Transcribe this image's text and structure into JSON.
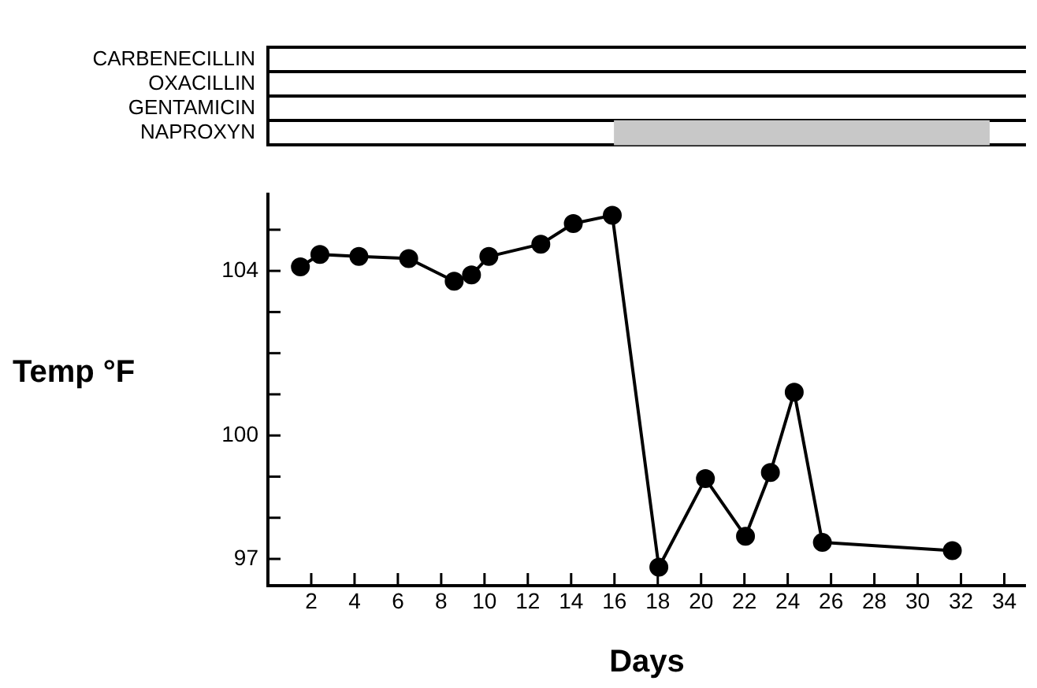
{
  "chart_data": [
    {
      "type": "bar",
      "orientation": "horizontal",
      "categories": [
        "CARBENECILLIN",
        "OXACILLIN",
        "GENTAMICIN",
        "NAPROXYN"
      ],
      "values": [
        null,
        null,
        null,
        17.3
      ],
      "base": [
        null,
        null,
        null,
        16
      ],
      "color": "#c8c8c8",
      "xlim": [
        0,
        35
      ],
      "tick_labels": "y",
      "grid": "y",
      "legend": false
    },
    {
      "type": "line",
      "xlabel": "Days",
      "ylabel": "Temp °F",
      "x": [
        1.5,
        2.4,
        4.2,
        6.5,
        8.6,
        9.4,
        10.2,
        12.6,
        14.1,
        15.9,
        18.05,
        20.2,
        22.05,
        23.2,
        24.3,
        25.6,
        31.6
      ],
      "series": [
        {
          "color": "#000000",
          "values": [
            104.1,
            104.4,
            104.35,
            104.3,
            103.75,
            103.9,
            104.35,
            104.65,
            105.15,
            105.35,
            96.8,
            98.95,
            97.55,
            99.1,
            101.05,
            97.4,
            97.2
          ]
        }
      ],
      "xlim": [
        0,
        35
      ],
      "xticks": [
        2,
        4,
        6,
        8,
        10,
        12,
        14,
        16,
        18,
        20,
        22,
        24,
        26,
        28,
        30,
        32,
        34
      ],
      "ylim": [
        96.35,
        105.9
      ],
      "yticks": [
        97,
        {
          "value": 98,
          "label": null
        },
        {
          "value": 99,
          "label": null
        },
        100,
        {
          "value": 101,
          "label": null
        },
        {
          "value": 102,
          "label": null
        },
        {
          "value": 103,
          "label": null
        },
        104,
        {
          "value": 105,
          "label": null
        }
      ],
      "marker": "circle",
      "line_style": "solid",
      "grid": false,
      "legend": false
    }
  ]
}
